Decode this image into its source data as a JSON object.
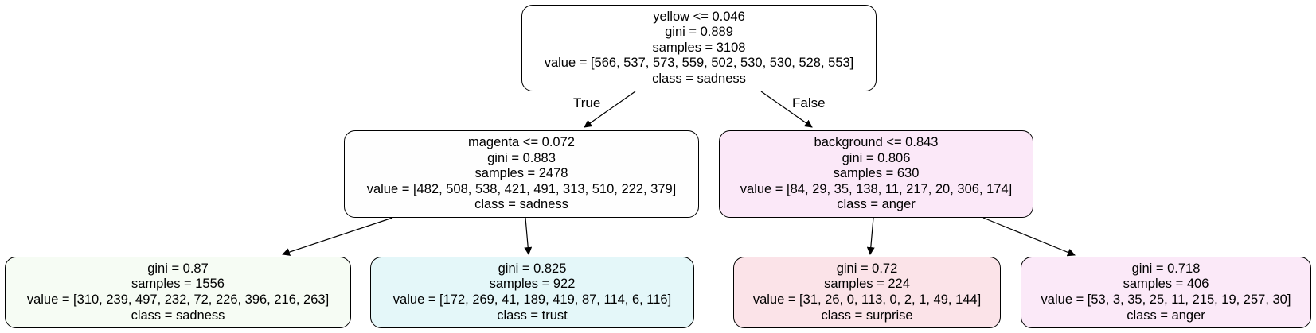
{
  "tree": {
    "root": {
      "split": "yellow <= 0.046",
      "gini": "gini = 0.889",
      "samples": "samples = 3108",
      "value": "value = [566, 537, 573, 559, 502, 530, 530, 528, 553]",
      "class": "class = sadness",
      "fill": "#ffffff"
    },
    "edge_true_label": "True",
    "edge_false_label": "False",
    "left": {
      "split": "magenta <= 0.072",
      "gini": "gini = 0.883",
      "samples": "samples = 2478",
      "value": "value = [482, 508, 538, 421, 491, 313, 510, 222, 379]",
      "class": "class = sadness",
      "fill": "#fefefe"
    },
    "right": {
      "split": "background <= 0.843",
      "gini": "gini = 0.806",
      "samples": "samples = 630",
      "value": "value = [84, 29, 35, 138, 11, 217, 20, 306, 174]",
      "class": "class = anger",
      "fill": "#fbe8f8"
    },
    "left_left": {
      "gini": "gini = 0.87",
      "samples": "samples = 1556",
      "value": "value = [310, 239, 497, 232, 72, 226, 396, 216, 263]",
      "class": "class = sadness",
      "fill": "#f6fcf4"
    },
    "left_right": {
      "gini": "gini = 0.825",
      "samples": "samples = 922",
      "value": "value = [172, 269, 41, 189, 419, 87, 114, 6, 116]",
      "class": "class = trust",
      "fill": "#e4f7f9"
    },
    "right_left": {
      "gini": "gini = 0.72",
      "samples": "samples = 224",
      "value": "value = [31, 26, 0, 113, 0, 2, 1, 49, 144]",
      "class": "class = surprise",
      "fill": "#fbe3e8"
    },
    "right_right": {
      "gini": "gini = 0.718",
      "samples": "samples = 406",
      "value": "value = [53, 3, 35, 25, 11, 215, 19, 257, 30]",
      "class": "class = anger",
      "fill": "#fbe9f8"
    }
  }
}
